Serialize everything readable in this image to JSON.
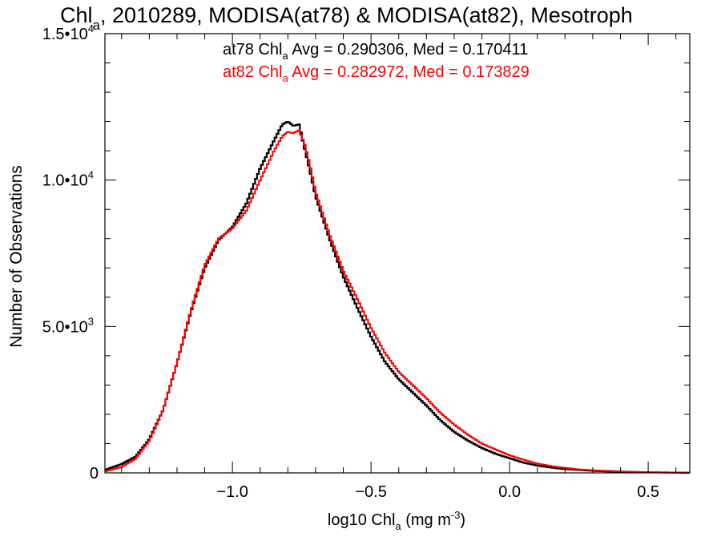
{
  "title": {
    "main": "Chl",
    "sub": "a",
    "rest": ", 2010289, MODISA(at78) & MODISA(at82), Mesotroph"
  },
  "stats": [
    {
      "prefix": "at78 Chl",
      "sub": "a",
      "rest": " Avg = 0.290306, Med = 0.170411",
      "color": "#000000"
    },
    {
      "prefix": "at82 Chl",
      "sub": "a",
      "rest": " Avg = 0.282972, Med = 0.173829",
      "color": "#ff0000"
    }
  ],
  "axes": {
    "xlabel": {
      "main": "log10 Chl",
      "sub": "a",
      "rest": " (mg m",
      "sup": "-3",
      "end": ")"
    },
    "ylabel": "Number of Observations",
    "xticks": [
      {
        "value": -1.0,
        "label": "−1.0"
      },
      {
        "value": -0.5,
        "label": "−0.5"
      },
      {
        "value": 0.0,
        "label": "0.0"
      },
      {
        "value": 0.5,
        "label": "0.5"
      }
    ],
    "yticks": [
      {
        "value": 0,
        "label": "0",
        "sup": ""
      },
      {
        "value": 5000,
        "label": "5.0•10",
        "sup": "3"
      },
      {
        "value": 10000,
        "label": "1.0•10",
        "sup": "4"
      },
      {
        "value": 15000,
        "label": "1.5•10",
        "sup": "4"
      }
    ]
  },
  "chart_data": {
    "type": "line",
    "step": true,
    "xlim": [
      -1.46,
      0.65
    ],
    "ylim": [
      0,
      15000
    ],
    "grid": false,
    "series": [
      {
        "name": "at78",
        "color": "#000000",
        "x": [
          -1.46,
          -1.4,
          -1.35,
          -1.3,
          -1.25,
          -1.2,
          -1.15,
          -1.1,
          -1.05,
          -1.0,
          -0.95,
          -0.9,
          -0.85,
          -0.82,
          -0.8,
          -0.78,
          -0.76,
          -0.74,
          -0.72,
          -0.7,
          -0.65,
          -0.6,
          -0.55,
          -0.5,
          -0.45,
          -0.4,
          -0.35,
          -0.3,
          -0.25,
          -0.2,
          -0.15,
          -0.1,
          -0.05,
          0.0,
          0.05,
          0.1,
          0.15,
          0.2,
          0.25,
          0.3,
          0.35,
          0.4,
          0.45,
          0.5,
          0.55,
          0.6,
          0.65
        ],
        "y": [
          100,
          300,
          550,
          1150,
          2150,
          3750,
          5500,
          7000,
          7950,
          8400,
          9200,
          10400,
          11350,
          11900,
          12000,
          11850,
          11900,
          11100,
          10300,
          9450,
          8000,
          6700,
          5650,
          4650,
          3800,
          3200,
          2750,
          2300,
          1800,
          1400,
          1100,
          850,
          650,
          500,
          350,
          250,
          180,
          130,
          100,
          70,
          50,
          40,
          30,
          20,
          15,
          10,
          5
        ]
      },
      {
        "name": "at82",
        "color": "#ff0000",
        "x": [
          -1.46,
          -1.4,
          -1.35,
          -1.3,
          -1.25,
          -1.2,
          -1.15,
          -1.1,
          -1.05,
          -1.0,
          -0.95,
          -0.9,
          -0.85,
          -0.82,
          -0.8,
          -0.78,
          -0.76,
          -0.74,
          -0.72,
          -0.7,
          -0.65,
          -0.6,
          -0.55,
          -0.5,
          -0.45,
          -0.4,
          -0.35,
          -0.3,
          -0.25,
          -0.2,
          -0.15,
          -0.1,
          -0.05,
          0.0,
          0.05,
          0.1,
          0.15,
          0.2,
          0.25,
          0.3,
          0.35,
          0.4,
          0.45,
          0.5,
          0.55,
          0.6,
          0.65
        ],
        "y": [
          50,
          200,
          480,
          1100,
          2150,
          3750,
          5550,
          7100,
          8000,
          8350,
          8950,
          10000,
          11000,
          11500,
          11650,
          11600,
          11700,
          11250,
          10500,
          9600,
          8150,
          6900,
          5950,
          4950,
          4100,
          3450,
          3000,
          2550,
          2050,
          1650,
          1300,
          1000,
          800,
          600,
          450,
          320,
          230,
          170,
          120,
          90,
          70,
          50,
          35,
          25,
          18,
          12,
          6
        ]
      }
    ]
  }
}
